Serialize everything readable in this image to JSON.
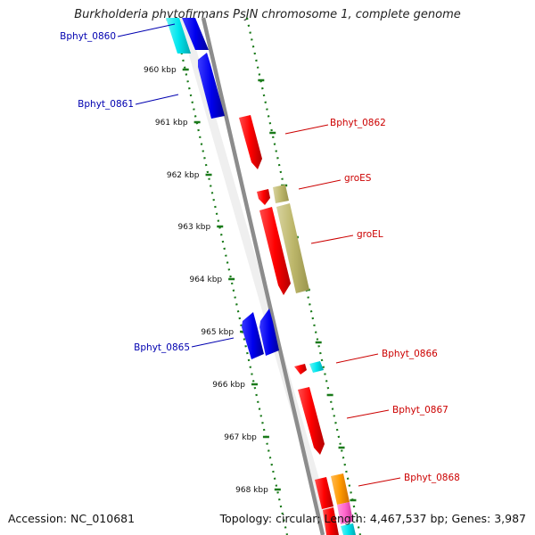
{
  "title": "Burkholderia phytofirmans PsJN chromosome 1, complete genome",
  "footer": {
    "accession": "Accession: NC_010681",
    "summary": "Topology: circular; Length: 4,467,537 bp; Genes: 3,987"
  },
  "ruler_labels": [
    "960 kbp",
    "961 kbp",
    "962 kbp",
    "963 kbp",
    "964 kbp",
    "965 kbp",
    "966 kbp",
    "967 kbp",
    "968 kbp"
  ],
  "gene_labels": [
    {
      "text": "Bphyt_0860",
      "strand": "reverse",
      "color": "#0000b0"
    },
    {
      "text": "Bphyt_0861",
      "strand": "reverse",
      "color": "#0000b0"
    },
    {
      "text": "Bphyt_0862",
      "strand": "forward",
      "color": "#cc0000"
    },
    {
      "text": "groES",
      "strand": "forward",
      "color": "#cc0000"
    },
    {
      "text": "groEL",
      "strand": "forward",
      "color": "#cc0000"
    },
    {
      "text": "Bphyt_0865",
      "strand": "reverse",
      "color": "#0000b0"
    },
    {
      "text": "Bphyt_0866",
      "strand": "forward",
      "color": "#cc0000"
    },
    {
      "text": "Bphyt_0867",
      "strand": "forward",
      "color": "#cc0000"
    },
    {
      "text": "Bphyt_0868",
      "strand": "forward",
      "color": "#cc0000"
    }
  ],
  "feature_colors": {
    "cds_forward": "#ff0000",
    "cds_reverse": "#0000ee",
    "rna": "#00e5ee",
    "chaperone": "#bdb76b",
    "orange": "#ff9900",
    "pink": "#ff66cc",
    "backbone": "#909090",
    "ruler": "#1a7a1a"
  }
}
